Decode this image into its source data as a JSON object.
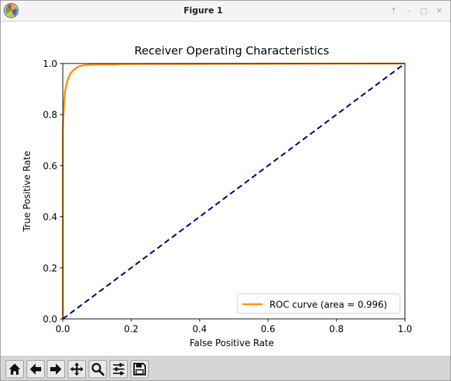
{
  "window": {
    "title": "Figure 1",
    "controls": [
      "restore-up-icon",
      "minimize-icon",
      "maximize-icon",
      "close-icon"
    ]
  },
  "toolbar": {
    "buttons": [
      "home-icon",
      "back-arrow-icon",
      "forward-arrow-icon",
      "pan-move-icon",
      "zoom-magnifier-icon",
      "configure-subplots-icon",
      "save-floppy-icon"
    ]
  },
  "chart_data": {
    "type": "line",
    "title": "Receiver Operating Characteristics",
    "xlabel": "False Positive Rate",
    "ylabel": "True Positive Rate",
    "xlim": [
      0.0,
      1.0
    ],
    "ylim": [
      0.0,
      1.0
    ],
    "x_ticks": [
      "0.0",
      "0.2",
      "0.4",
      "0.6",
      "0.8",
      "1.0"
    ],
    "y_ticks": [
      "0.0",
      "0.2",
      "0.4",
      "0.6",
      "0.8",
      "1.0"
    ],
    "grid": false,
    "legend_position": "lower right",
    "series": [
      {
        "name": "ROC curve (area = 0.996)",
        "color": "#ff8c00",
        "style": "solid",
        "x": [
          0.0,
          0.0,
          0.001,
          0.002,
          0.003,
          0.004,
          0.005,
          0.006,
          0.008,
          0.01,
          0.013,
          0.016,
          0.02,
          0.025,
          0.03,
          0.036,
          0.043,
          0.05,
          0.06,
          0.075,
          0.1,
          0.16,
          0.17,
          1.0
        ],
        "y": [
          0.0,
          0.74,
          0.77,
          0.8,
          0.83,
          0.855,
          0.87,
          0.885,
          0.9,
          0.915,
          0.93,
          0.942,
          0.955,
          0.965,
          0.973,
          0.98,
          0.985,
          0.99,
          0.993,
          0.995,
          0.996,
          0.996,
          0.998,
          1.0
        ]
      },
      {
        "color": "#000080",
        "style": "dashed",
        "x": [
          0.0,
          1.0
        ],
        "y": [
          0.0,
          1.0
        ]
      }
    ]
  }
}
